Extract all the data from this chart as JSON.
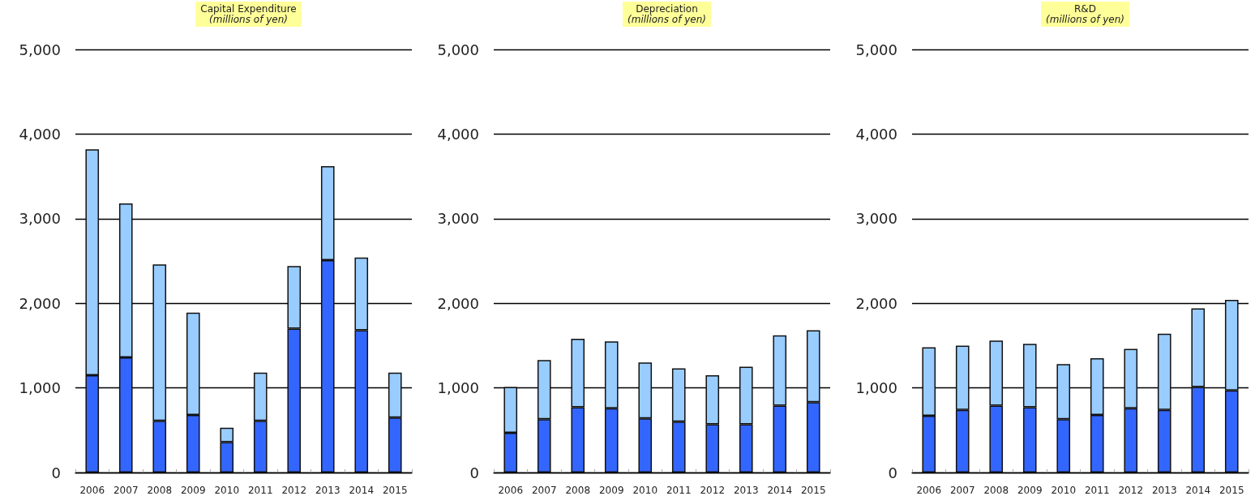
{
  "chart_data": [
    {
      "type": "bar",
      "title": "Capital Expenditure",
      "subtitle": "(millions of yen)",
      "categories": [
        "2006",
        "2007",
        "2008",
        "2009",
        "2010",
        "2011",
        "2012",
        "2013",
        "2014",
        "2015"
      ],
      "stacked": true,
      "grid": "y",
      "ylim": [
        0,
        5000
      ],
      "yticks": [
        {
          "value": 0,
          "label": "0"
        },
        {
          "value": 1000,
          "label": "1,000"
        },
        {
          "value": 2000,
          "label": "2,000"
        },
        {
          "value": 3000,
          "label": "3,000"
        },
        {
          "value": 4000,
          "label": "4,000"
        },
        {
          "value": 5000,
          "label": "5,000"
        }
      ],
      "series": [
        {
          "color": "#3366ff",
          "values": [
            1150,
            1360,
            610,
            680,
            360,
            610,
            1700,
            2510,
            1680,
            650
          ]
        },
        {
          "color": "#99ccff",
          "values": [
            2670,
            1820,
            1850,
            1210,
            170,
            570,
            740,
            1110,
            860,
            530
          ]
        }
      ]
    },
    {
      "type": "bar",
      "title": "Depreciation",
      "subtitle": "(millions of yen)",
      "categories": [
        "2006",
        "2007",
        "2008",
        "2009",
        "2010",
        "2011",
        "2012",
        "2013",
        "2014",
        "2015"
      ],
      "stacked": true,
      "grid": "y",
      "ylim": [
        0,
        5000
      ],
      "yticks": [
        {
          "value": 0,
          "label": "0"
        },
        {
          "value": 1000,
          "label": "1,000"
        },
        {
          "value": 2000,
          "label": "2,000"
        },
        {
          "value": 3000,
          "label": "3,000"
        },
        {
          "value": 4000,
          "label": "4,000"
        },
        {
          "value": 5000,
          "label": "5,000"
        }
      ],
      "series": [
        {
          "color": "#3366ff",
          "values": [
            470,
            630,
            770,
            760,
            640,
            600,
            570,
            570,
            790,
            830
          ]
        },
        {
          "color": "#99ccff",
          "values": [
            540,
            700,
            810,
            790,
            660,
            630,
            580,
            680,
            830,
            850
          ]
        }
      ]
    },
    {
      "type": "bar",
      "title": "R&D",
      "subtitle": "(millions of yen)",
      "categories": [
        "2006",
        "2007",
        "2008",
        "2009",
        "2010",
        "2011",
        "2012",
        "2013",
        "2014",
        "2015"
      ],
      "stacked": true,
      "grid": "y",
      "ylim": [
        0,
        5000
      ],
      "yticks": [
        {
          "value": 0,
          "label": "0"
        },
        {
          "value": 1000,
          "label": "1,000"
        },
        {
          "value": 2000,
          "label": "2,000"
        },
        {
          "value": 3000,
          "label": "3,000"
        },
        {
          "value": 4000,
          "label": "4,000"
        },
        {
          "value": 5000,
          "label": "5,000"
        }
      ],
      "series": [
        {
          "color": "#3366ff",
          "values": [
            670,
            740,
            790,
            770,
            630,
            680,
            760,
            740,
            1010,
            970
          ]
        },
        {
          "color": "#99ccff",
          "values": [
            810,
            760,
            770,
            750,
            650,
            670,
            700,
            900,
            930,
            1070
          ]
        }
      ]
    }
  ]
}
